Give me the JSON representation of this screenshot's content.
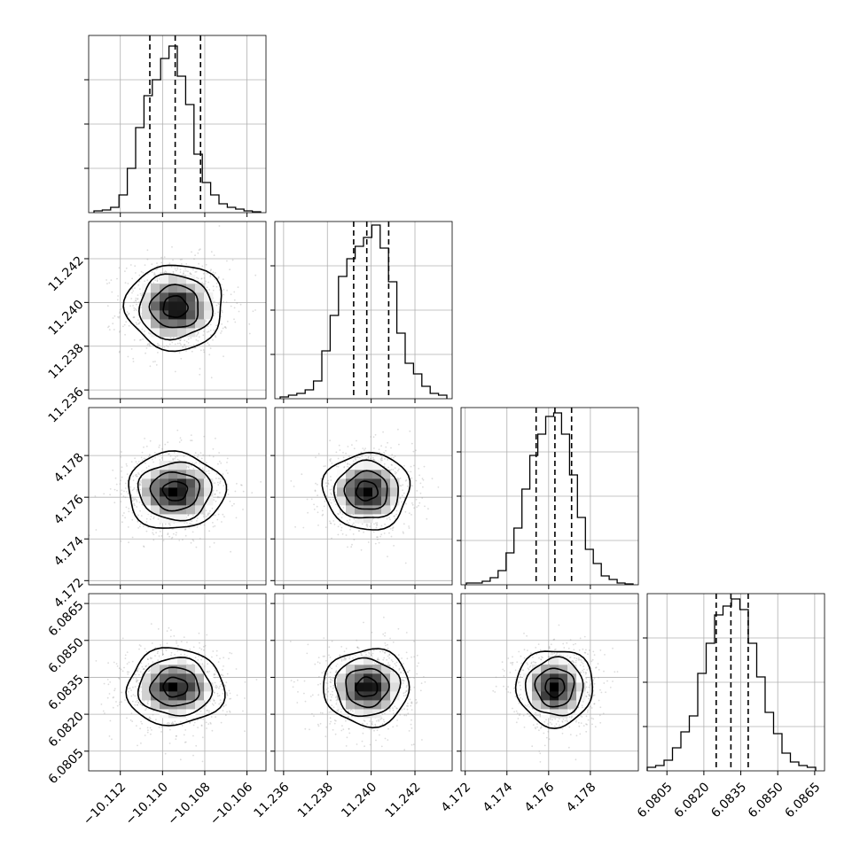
{
  "chart_data": {
    "type": "corner",
    "title": "",
    "grid": true,
    "histogram_y_ticks": "unlabeled",
    "quantile_lines": [
      0.16,
      0.5,
      0.84
    ],
    "params": [
      {
        "range": [
          -10.1135,
          -10.1051
        ],
        "ticks": [
          "−10.112",
          "−10.110",
          "−10.108",
          "−10.106"
        ],
        "tick_values": [
          -10.112,
          -10.11,
          -10.108,
          -10.106
        ],
        "quantiles": [
          -10.1106,
          -10.1094,
          -10.1082
        ],
        "hist": [
          0.01,
          0.015,
          0.03,
          0.1,
          0.25,
          0.48,
          0.66,
          0.75,
          0.87,
          0.94,
          0.77,
          0.61,
          0.33,
          0.17,
          0.1,
          0.05,
          0.03,
          0.02,
          0.01,
          0.005
        ],
        "hist_x_fraction_range": [
          0.03,
          0.97
        ]
      },
      {
        "range": [
          11.2356,
          11.2437
        ],
        "ticks": [
          "11.236",
          "11.238",
          "11.240",
          "11.242"
        ],
        "tick_values": [
          11.236,
          11.238,
          11.24,
          11.242
        ],
        "quantiles": [
          11.2392,
          11.2398,
          11.2408
        ],
        "hist": [
          0.01,
          0.02,
          0.03,
          0.05,
          0.1,
          0.27,
          0.47,
          0.69,
          0.79,
          0.86,
          0.91,
          0.98,
          0.85,
          0.66,
          0.37,
          0.2,
          0.14,
          0.07,
          0.03,
          0.02
        ],
        "hist_x_fraction_range": [
          0.03,
          0.97
        ]
      },
      {
        "range": [
          4.1718,
          4.1803
        ],
        "ticks": [
          "4.172",
          "4.174",
          "4.176",
          "4.178"
        ],
        "tick_values": [
          4.172,
          4.174,
          4.176,
          4.178
        ],
        "quantiles": [
          4.1754,
          4.1763,
          4.1771
        ],
        "hist": [
          0.01,
          0.01,
          0.02,
          0.04,
          0.08,
          0.18,
          0.32,
          0.54,
          0.73,
          0.85,
          0.95,
          0.97,
          0.85,
          0.62,
          0.38,
          0.2,
          0.12,
          0.05,
          0.03,
          0.01,
          0.005
        ],
        "hist_x_fraction_range": [
          0.03,
          0.97
        ]
      },
      {
        "range": [
          6.0797,
          6.0869
        ],
        "ticks": [
          "6.0805",
          "6.0820",
          "6.0835",
          "6.0850",
          "6.0865"
        ],
        "tick_values": [
          6.0805,
          6.082,
          6.0835,
          6.085,
          6.0865
        ],
        "quantiles": [
          6.0825,
          6.0831,
          6.0838
        ],
        "hist": [
          0.02,
          0.03,
          0.06,
          0.13,
          0.22,
          0.31,
          0.55,
          0.72,
          0.88,
          0.93,
          0.97,
          0.91,
          0.72,
          0.53,
          0.33,
          0.21,
          0.1,
          0.05,
          0.03,
          0.02
        ],
        "hist_x_fraction_range": [
          0.0,
          0.95
        ]
      }
    ],
    "pairs": [
      {
        "row": 1,
        "col": 0,
        "cx": -10.1094,
        "cy": 11.2398,
        "sx": 0.00115,
        "sy": 0.00098
      },
      {
        "row": 2,
        "col": 0,
        "cx": -10.1094,
        "cy": 4.1763,
        "sx": 0.00115,
        "sy": 0.00092
      },
      {
        "row": 2,
        "col": 1,
        "cx": 11.2398,
        "cy": 4.1763,
        "sx": 0.00098,
        "sy": 0.00092
      },
      {
        "row": 3,
        "col": 0,
        "cx": -10.1094,
        "cy": 6.0831,
        "sx": 0.00115,
        "sy": 0.00078
      },
      {
        "row": 3,
        "col": 1,
        "cx": 11.2398,
        "cy": 6.0831,
        "sx": 0.00098,
        "sy": 0.00078
      },
      {
        "row": 3,
        "col": 2,
        "cx": 4.1763,
        "cy": 6.0831,
        "sx": 0.00092,
        "sy": 0.00078
      }
    ],
    "contour_levels_sigma": [
      0.5,
      1.0,
      1.5,
      2.0
    ]
  }
}
